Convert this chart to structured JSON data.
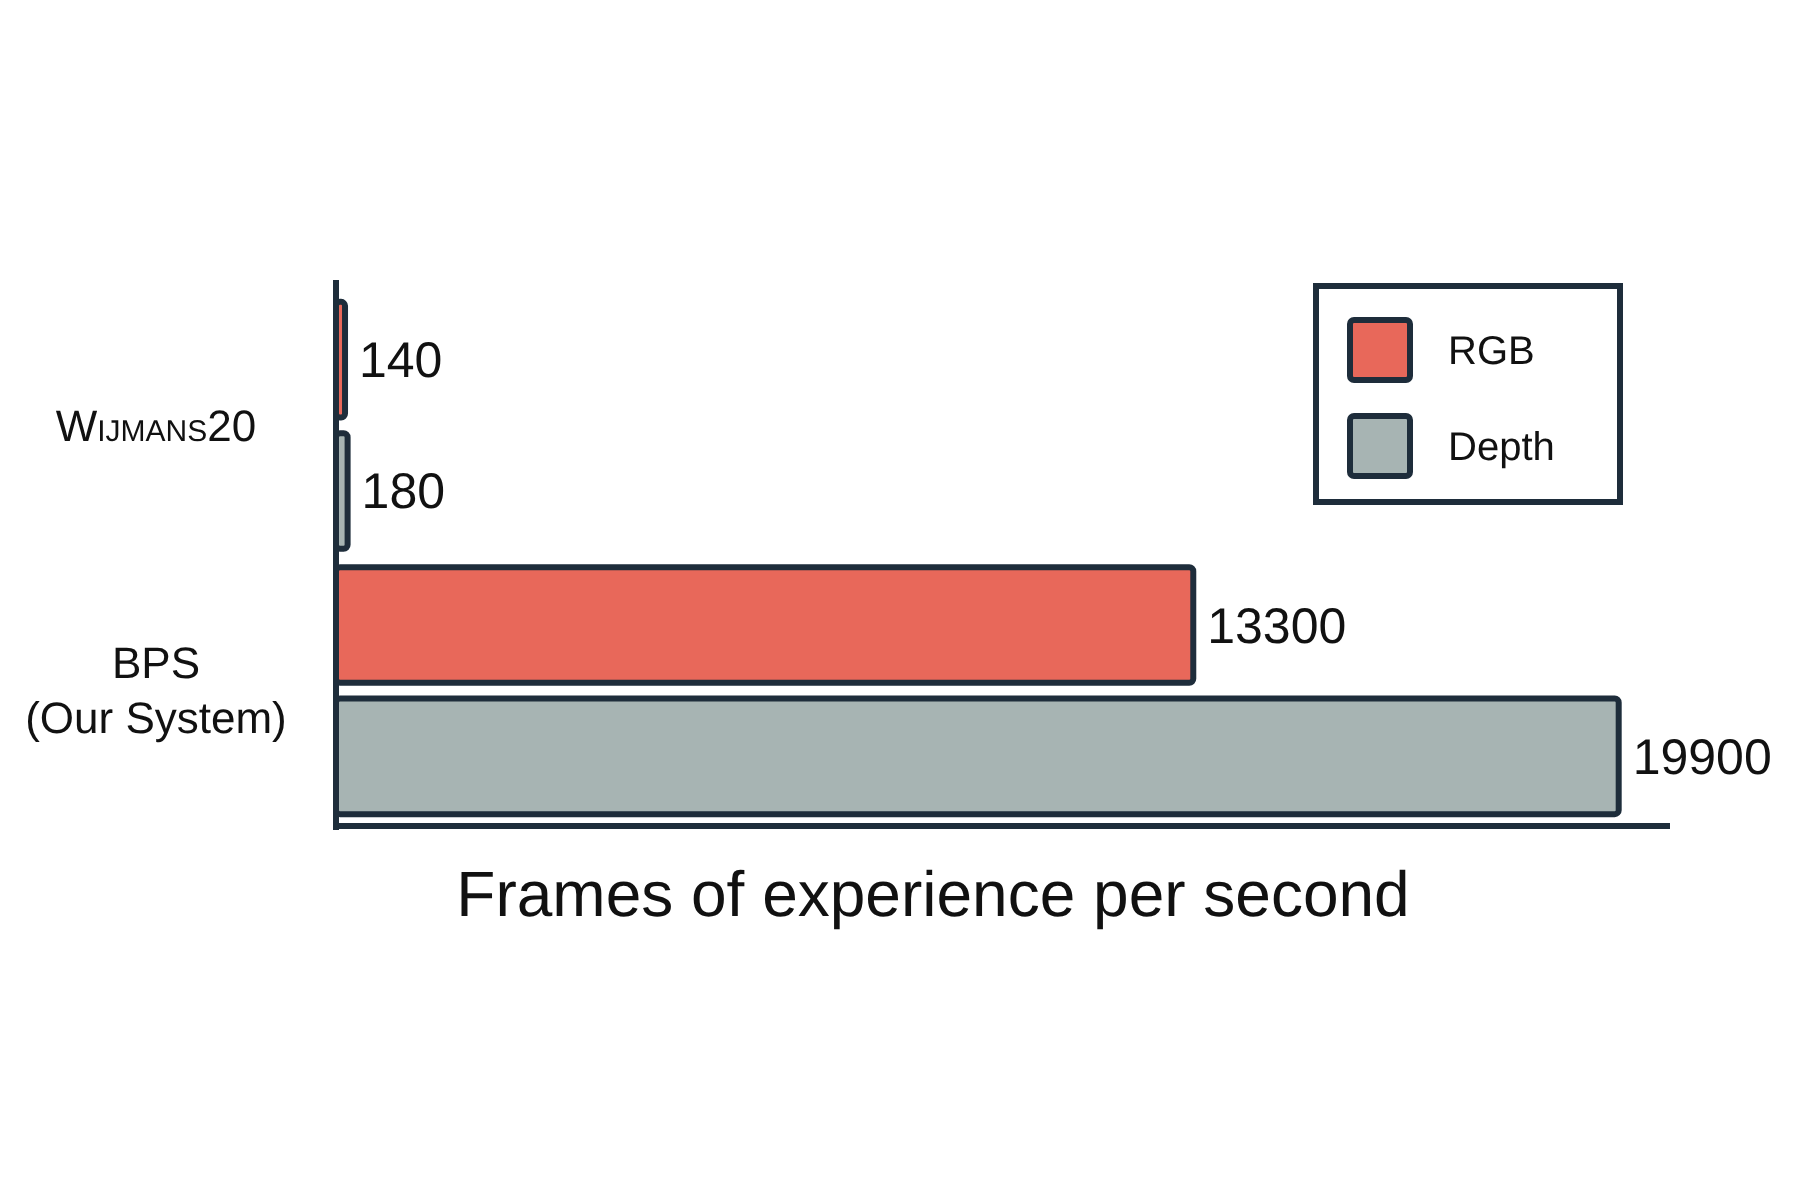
{
  "chart_data": {
    "type": "bar",
    "orientation": "horizontal",
    "xlabel": "Frames of experience per second",
    "categories": [
      "Wijmans20",
      "BPS\n(Our System)"
    ],
    "series": [
      {
        "name": "RGB",
        "color": "#e8685a",
        "values": [
          140,
          13300
        ]
      },
      {
        "name": "Depth",
        "color": "#a7b4b3",
        "values": [
          180,
          19900
        ]
      }
    ],
    "data_labels": true,
    "legend": "top right",
    "tick_labels": "y"
  }
}
